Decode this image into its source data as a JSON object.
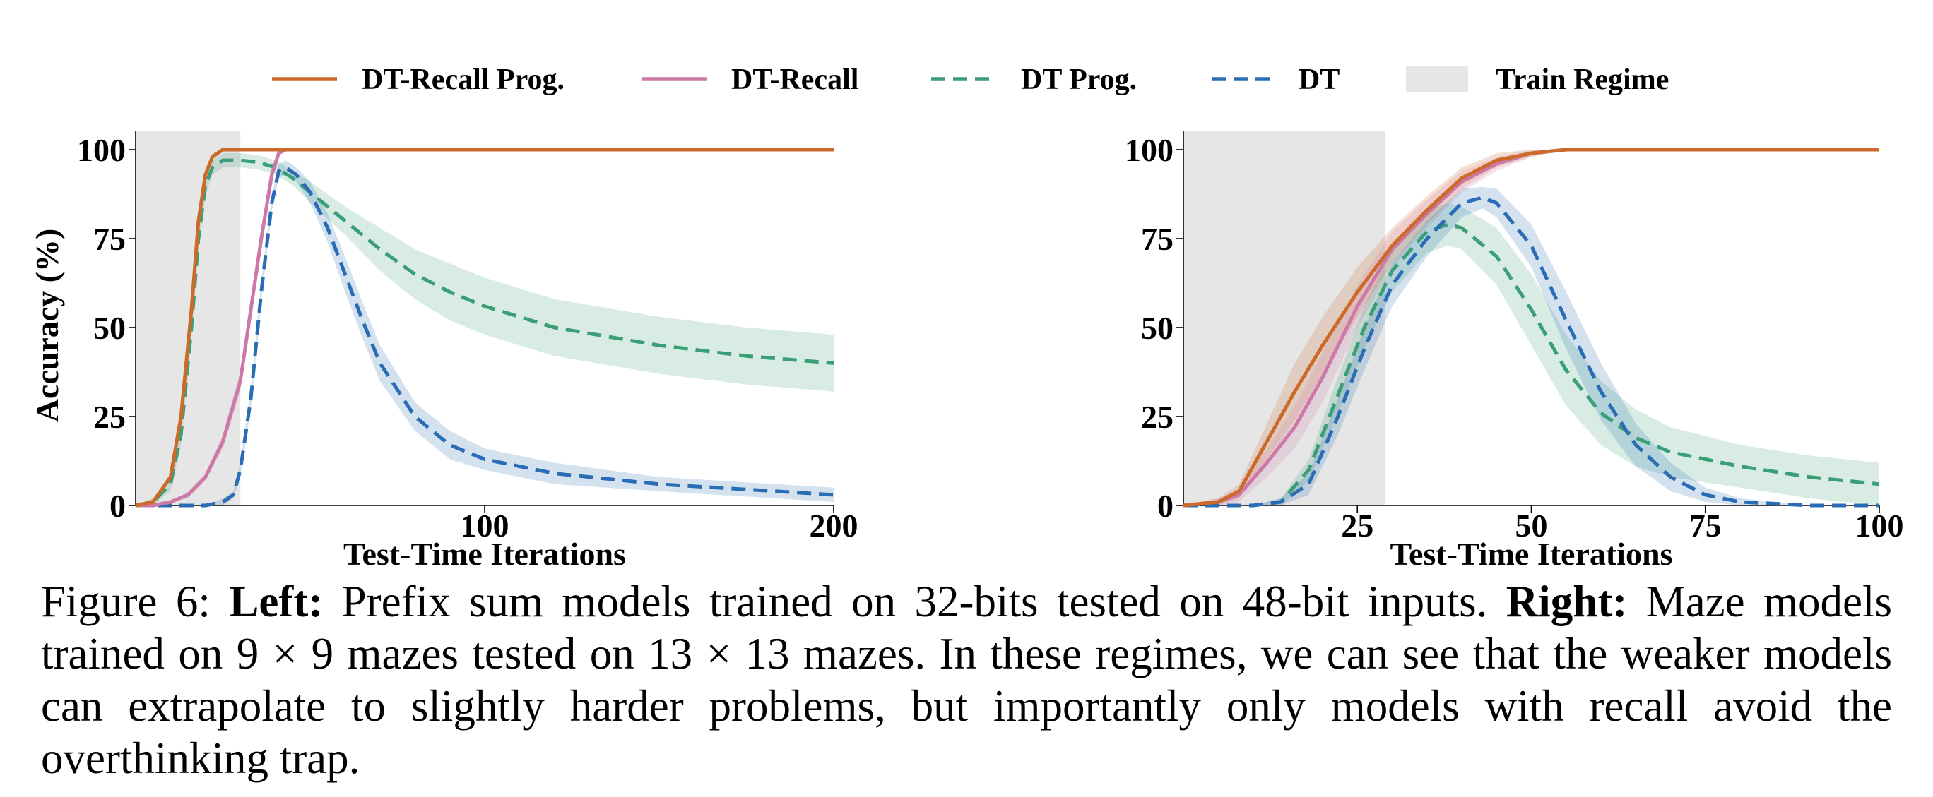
{
  "legend": [
    {
      "name": "DT-Recall Prog.",
      "color": "#cc6a2a",
      "style": "solid"
    },
    {
      "name": "DT-Recall",
      "color": "#cc79a7",
      "style": "solid"
    },
    {
      "name": "DT Prog.",
      "color": "#3a9e78",
      "style": "dashed"
    },
    {
      "name": "DT",
      "color": "#2a6db4",
      "style": "dashed"
    },
    {
      "name": "Train Regime",
      "color": "#e6e6e6",
      "style": "patch"
    }
  ],
  "caption": {
    "prefix": "Figure 6: ",
    "left_bold": "Left:",
    "left_text": " Prefix sum models trained on 32-bits tested on 48-bit inputs. ",
    "right_bold": "Right:",
    "right_text": " Maze models trained on 9 × 9 mazes tested on 13 × 13 mazes. In these regimes, we can see that the weaker models can extrapolate to slightly harder problems, but importantly only models with recall avoid the overthinking trap."
  },
  "chart_data": [
    {
      "type": "line",
      "xlabel": "Test-Time Iterations",
      "ylabel": "Accuracy (%)",
      "xlim": [
        0,
        200
      ],
      "ylim": [
        0,
        100
      ],
      "xticks": [
        100,
        200
      ],
      "yticks": [
        0,
        25,
        50,
        75,
        100
      ],
      "train_regime": [
        0,
        30
      ],
      "grid": false,
      "legend_position": "top",
      "series": [
        {
          "name": "DT-Recall Prog.",
          "x": [
            0,
            5,
            10,
            13,
            16,
            18,
            20,
            22,
            25,
            30,
            40,
            60,
            100,
            150,
            200
          ],
          "y": [
            0,
            1,
            8,
            25,
            55,
            80,
            93,
            98,
            100,
            100,
            100,
            100,
            100,
            100,
            100
          ],
          "band": [
            0,
            1,
            1,
            2,
            2,
            2,
            1,
            1,
            0,
            0,
            0,
            0,
            0,
            0,
            0
          ]
        },
        {
          "name": "DT-Recall",
          "x": [
            0,
            5,
            10,
            15,
            20,
            25,
            30,
            33,
            36,
            39,
            41,
            43,
            50,
            100,
            150,
            200
          ],
          "y": [
            0,
            0,
            1,
            3,
            8,
            18,
            35,
            55,
            75,
            93,
            99,
            100,
            100,
            100,
            100,
            100
          ],
          "band": [
            0,
            0,
            0,
            1,
            1,
            2,
            3,
            3,
            3,
            2,
            1,
            0,
            0,
            0,
            0,
            0
          ]
        },
        {
          "name": "DT Prog.",
          "x": [
            0,
            5,
            10,
            13,
            16,
            18,
            20,
            22,
            25,
            30,
            35,
            40,
            45,
            50,
            60,
            70,
            80,
            90,
            100,
            120,
            150,
            175,
            200
          ],
          "y": [
            0,
            1,
            6,
            20,
            50,
            75,
            90,
            95,
            97,
            97,
            96.5,
            95,
            92,
            88,
            80,
            72,
            65,
            60,
            56,
            50,
            45,
            42,
            40
          ],
          "band": [
            0,
            1,
            2,
            3,
            3,
            3,
            3,
            2,
            2,
            2,
            2,
            2,
            2,
            3,
            4,
            6,
            7,
            8,
            8,
            8,
            8,
            8,
            8
          ]
        },
        {
          "name": "DT",
          "x": [
            0,
            10,
            20,
            25,
            28,
            30,
            33,
            36,
            39,
            41,
            43,
            46,
            50,
            55,
            60,
            65,
            70,
            80,
            90,
            100,
            120,
            150,
            175,
            200
          ],
          "y": [
            0,
            0,
            0,
            1,
            3,
            10,
            30,
            60,
            85,
            94,
            95,
            93,
            88,
            78,
            65,
            52,
            40,
            25,
            17,
            13,
            9,
            6,
            4.5,
            3
          ],
          "band": [
            0,
            0,
            0,
            1,
            1,
            2,
            3,
            3,
            2,
            2,
            2,
            2,
            3,
            4,
            5,
            5,
            5,
            4,
            4,
            3,
            3,
            2,
            2,
            2
          ]
        }
      ]
    },
    {
      "type": "line",
      "xlabel": "Test-Time Iterations",
      "ylabel": "",
      "xlim": [
        0,
        100
      ],
      "ylim": [
        0,
        100
      ],
      "xticks": [
        25,
        50,
        75,
        100
      ],
      "yticks": [
        0,
        25,
        50,
        75,
        100
      ],
      "train_regime": [
        0,
        29
      ],
      "grid": false,
      "series": [
        {
          "name": "DT-Recall Prog.",
          "x": [
            0,
            5,
            8,
            12,
            16,
            20,
            25,
            30,
            35,
            40,
            45,
            50,
            55,
            60,
            70,
            80,
            90,
            100
          ],
          "y": [
            0,
            1,
            4,
            18,
            32,
            45,
            60,
            73,
            83,
            92,
            97,
            99,
            100,
            100,
            100,
            100,
            100,
            100
          ],
          "band": [
            0,
            1,
            2,
            5,
            8,
            8,
            7,
            5,
            4,
            3,
            2,
            1,
            0,
            0,
            0,
            0,
            0,
            0
          ]
        },
        {
          "name": "DT-Recall",
          "x": [
            0,
            5,
            8,
            12,
            16,
            20,
            25,
            30,
            35,
            40,
            45,
            50,
            55,
            60,
            70,
            80,
            90,
            100
          ],
          "y": [
            0,
            1,
            3,
            12,
            22,
            36,
            56,
            72,
            82,
            91,
            96,
            99,
            100,
            100,
            100,
            100,
            100,
            100
          ],
          "band": [
            0,
            1,
            2,
            4,
            6,
            7,
            6,
            5,
            4,
            3,
            2,
            1,
            0,
            0,
            0,
            0,
            0,
            0
          ]
        },
        {
          "name": "DT Prog.",
          "x": [
            0,
            10,
            14,
            18,
            22,
            26,
            30,
            35,
            38,
            40,
            45,
            50,
            55,
            60,
            65,
            70,
            80,
            90,
            100
          ],
          "y": [
            0,
            0,
            1,
            10,
            30,
            50,
            66,
            77,
            79,
            78,
            70,
            55,
            38,
            26,
            19,
            15,
            11,
            8,
            6
          ],
          "band": [
            0,
            0,
            1,
            3,
            5,
            6,
            6,
            6,
            6,
            6,
            8,
            10,
            10,
            9,
            8,
            7,
            6,
            6,
            6
          ]
        },
        {
          "name": "DT",
          "x": [
            0,
            10,
            14,
            18,
            22,
            26,
            30,
            35,
            40,
            43,
            45,
            50,
            55,
            60,
            65,
            70,
            75,
            80,
            90,
            100
          ],
          "y": [
            0,
            0,
            1,
            6,
            24,
            44,
            62,
            75,
            85,
            86.5,
            85,
            73,
            52,
            32,
            17,
            8,
            3,
            1,
            0,
            0
          ],
          "band": [
            0,
            0,
            1,
            3,
            5,
            6,
            6,
            5,
            4,
            3,
            4,
            6,
            8,
            8,
            6,
            4,
            2,
            1,
            0,
            0
          ]
        }
      ]
    }
  ]
}
